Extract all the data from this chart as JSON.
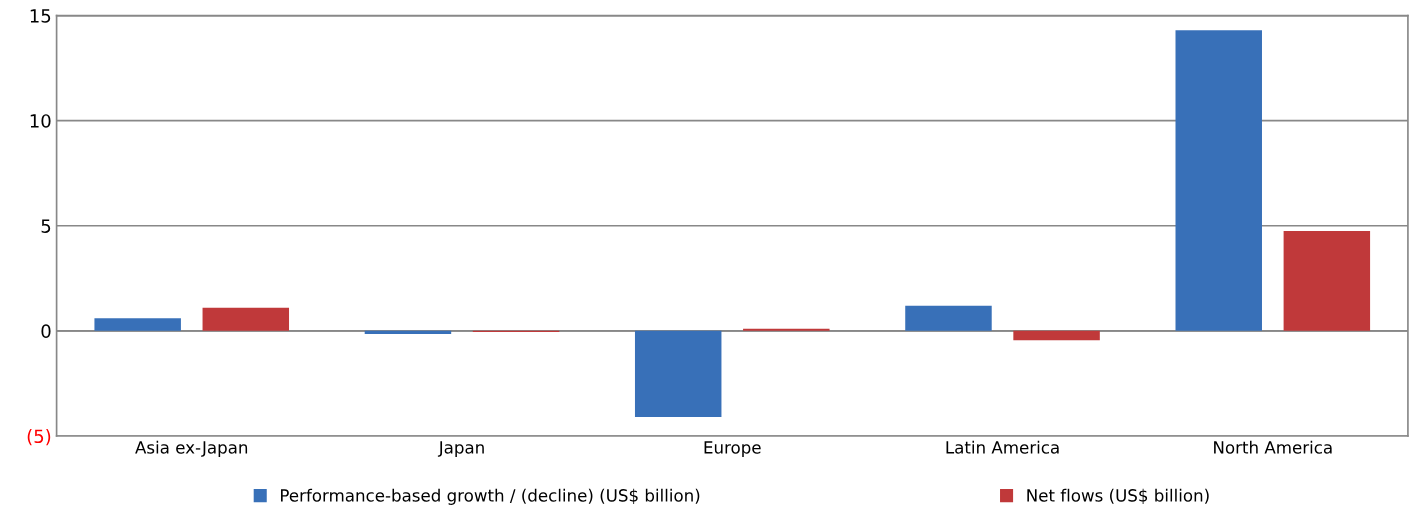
{
  "chart_data": {
    "type": "bar",
    "categories": [
      "Asia ex-Japan",
      "Japan",
      "Europe",
      "Latin America",
      "North America"
    ],
    "series": [
      {
        "name": "Performance-based growth / (decline) (US$ billion)",
        "color": "#3870b8",
        "values": [
          0.6,
          -0.15,
          -4.1,
          1.2,
          14.3
        ]
      },
      {
        "name": "Net flows (US$ billion)",
        "color": "#c0393a",
        "values": [
          1.1,
          -0.05,
          0.1,
          -0.45,
          4.75
        ]
      }
    ],
    "ylim": [
      -5,
      15
    ],
    "yticks": [
      {
        "value": -5,
        "label": "(5)"
      },
      0,
      5,
      10,
      15
    ],
    "grid": "y",
    "legend": "bottom"
  }
}
